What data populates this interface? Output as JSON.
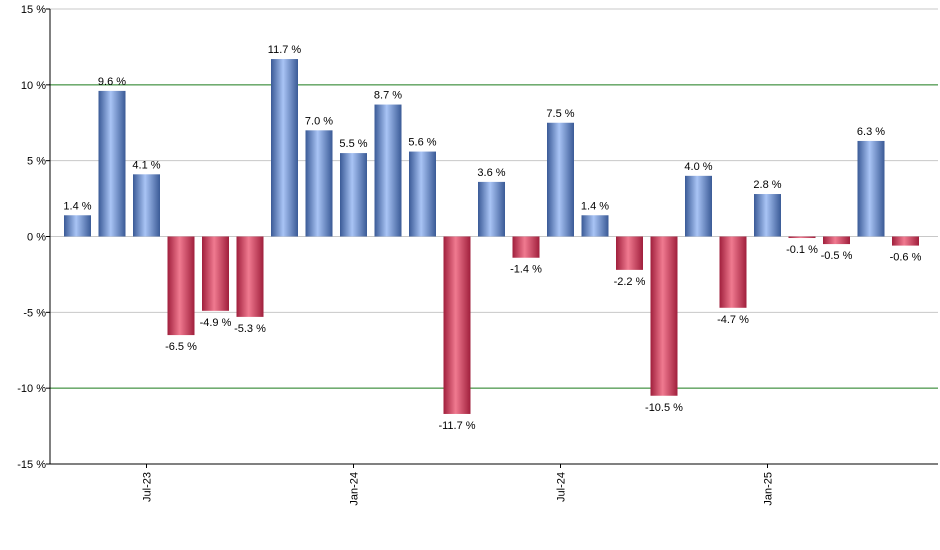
{
  "chart_data": {
    "type": "bar",
    "title": "",
    "xlabel": "",
    "ylabel": "",
    "ylim": [
      -15,
      15
    ],
    "y_ticks": [
      15,
      10,
      5,
      0,
      -5,
      -10,
      -15
    ],
    "y_tick_suffix": " %",
    "reference_lines": [
      10,
      -10
    ],
    "grid": true,
    "legend": "none",
    "x_tick_labels": [
      {
        "label": "Jul-23",
        "index": 2
      },
      {
        "label": "Jan-24",
        "index": 8
      },
      {
        "label": "Jul-24",
        "index": 14
      },
      {
        "label": "Jan-25",
        "index": 20
      }
    ],
    "values": [
      1.4,
      9.6,
      4.1,
      -6.5,
      -4.9,
      -5.3,
      11.7,
      7.0,
      5.5,
      8.7,
      5.6,
      -11.7,
      3.6,
      -1.4,
      7.5,
      1.4,
      -2.2,
      -10.5,
      4.0,
      -4.7,
      2.8,
      -0.1,
      -0.5,
      6.3,
      -0.6
    ],
    "value_labels": [
      "1.4 %",
      "9.6 %",
      "4.1 %",
      "-6.5 %",
      "-4.9 %",
      "-5.3 %",
      "11.7 %",
      "7.0 %",
      "5.5 %",
      "8.7 %",
      "5.6 %",
      "-11.7 %",
      "3.6 %",
      "-1.4 %",
      "7.5 %",
      "1.4 %",
      "-2.2 %",
      "-10.5 %",
      "4.0 %",
      "-4.7 %",
      "2.8 %",
      "-0.1 %",
      "-0.5 %",
      "6.3 %",
      "-0.6 %"
    ],
    "colors": {
      "positive_light": "#a9c4f5",
      "positive_dark": "#3a5a96",
      "negative_light": "#f07a90",
      "negative_dark": "#a01f3c",
      "grid": "#c8c8c8",
      "reference": "#1a7a1a",
      "axis": "#000000"
    }
  }
}
